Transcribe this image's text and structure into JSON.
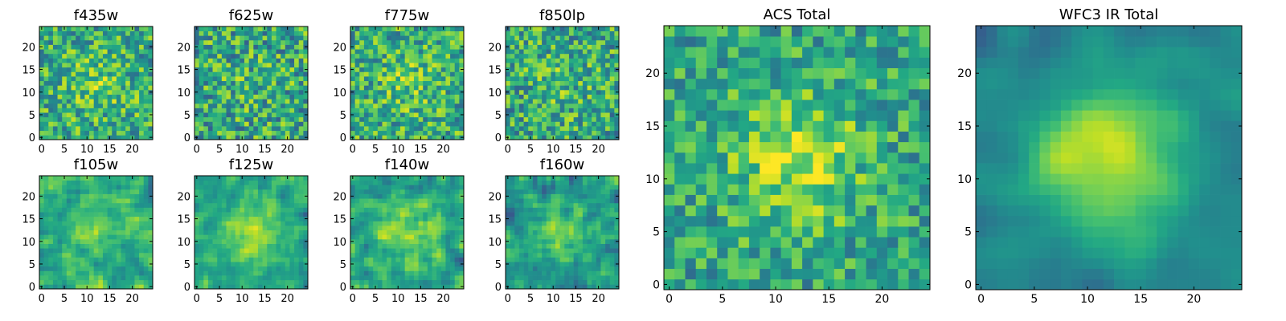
{
  "chart_data": {
    "type": "heatmap",
    "colormap": "viridis",
    "grid": false,
    "legend": "none",
    "panels": [
      {
        "title": "f435w",
        "xlim": [
          0,
          24
        ],
        "ylim": [
          0,
          24
        ],
        "xticks": [
          "0",
          "5",
          "10",
          "15",
          "20"
        ],
        "yticks": [
          "0",
          "5",
          "10",
          "15",
          "20"
        ],
        "seed": 11,
        "smooth": 0,
        "bumpAmp": 0.15,
        "noiseAmp": 0.55,
        "base": 0.62
      },
      {
        "title": "f625w",
        "xlim": [
          0,
          24
        ],
        "ylim": [
          0,
          24
        ],
        "xticks": [
          "0",
          "5",
          "10",
          "15",
          "20"
        ],
        "yticks": [
          "0",
          "5",
          "10",
          "15",
          "20"
        ],
        "seed": 23,
        "smooth": 0,
        "bumpAmp": 0.05,
        "noiseAmp": 0.6,
        "base": 0.6
      },
      {
        "title": "f775w",
        "xlim": [
          0,
          24
        ],
        "ylim": [
          0,
          24
        ],
        "xticks": [
          "0",
          "5",
          "10",
          "15",
          "20"
        ],
        "yticks": [
          "0",
          "5",
          "10",
          "15",
          "20"
        ],
        "seed": 37,
        "smooth": 0,
        "bumpAmp": 0.12,
        "noiseAmp": 0.55,
        "base": 0.62
      },
      {
        "title": "f850lp",
        "xlim": [
          0,
          24
        ],
        "ylim": [
          0,
          24
        ],
        "xticks": [
          "0",
          "5",
          "10",
          "15",
          "20"
        ],
        "yticks": [
          "0",
          "5",
          "10",
          "15",
          "20"
        ],
        "seed": 41,
        "smooth": 0,
        "bumpAmp": 0.08,
        "noiseAmp": 0.58,
        "base": 0.6
      },
      {
        "title": "f105w",
        "xlim": [
          0,
          24
        ],
        "ylim": [
          0,
          24
        ],
        "xticks": [
          "0",
          "5",
          "10",
          "15",
          "20"
        ],
        "yticks": [
          "0",
          "5",
          "10",
          "15",
          "20"
        ],
        "seed": 53,
        "smooth": 1,
        "bumpAmp": 0.1,
        "noiseAmp": 0.55,
        "base": 0.62
      },
      {
        "title": "f125w",
        "xlim": [
          0,
          24
        ],
        "ylim": [
          0,
          24
        ],
        "xticks": [
          "0",
          "5",
          "10",
          "15",
          "20"
        ],
        "yticks": [
          "0",
          "5",
          "10",
          "15",
          "20"
        ],
        "seed": 61,
        "smooth": 1,
        "bumpAmp": 0.3,
        "noiseAmp": 0.5,
        "base": 0.55
      },
      {
        "title": "f140w",
        "xlim": [
          0,
          24
        ],
        "ylim": [
          0,
          24
        ],
        "xticks": [
          "0",
          "5",
          "10",
          "15",
          "20"
        ],
        "yticks": [
          "0",
          "5",
          "10",
          "15",
          "20"
        ],
        "seed": 73,
        "smooth": 1,
        "bumpAmp": 0.25,
        "noiseAmp": 0.55,
        "base": 0.55
      },
      {
        "title": "f160w",
        "xlim": [
          0,
          24
        ],
        "ylim": [
          0,
          24
        ],
        "xticks": [
          "0",
          "5",
          "10",
          "15",
          "20"
        ],
        "yticks": [
          "0",
          "5",
          "10",
          "15",
          "20"
        ],
        "seed": 89,
        "smooth": 1,
        "bumpAmp": 0.25,
        "noiseAmp": 0.55,
        "base": 0.55
      },
      {
        "title": "ACS Total",
        "xlim": [
          0,
          24
        ],
        "ylim": [
          0,
          24
        ],
        "xticks": [
          "0",
          "5",
          "10",
          "15",
          "20"
        ],
        "yticks": [
          "0",
          "5",
          "10",
          "15",
          "20"
        ],
        "seed": 97,
        "smooth": 0,
        "bumpAmp": 0.3,
        "noiseAmp": 0.45,
        "base": 0.58
      },
      {
        "title": "WFC3 IR Total",
        "xlim": [
          0,
          24
        ],
        "ylim": [
          0,
          24
        ],
        "xticks": [
          "0",
          "5",
          "10",
          "15",
          "20"
        ],
        "yticks": [
          "0",
          "5",
          "10",
          "15",
          "20"
        ],
        "seed": 103,
        "smooth": 2,
        "bumpAmp": 0.5,
        "noiseAmp": 0.3,
        "base": 0.45
      }
    ]
  }
}
